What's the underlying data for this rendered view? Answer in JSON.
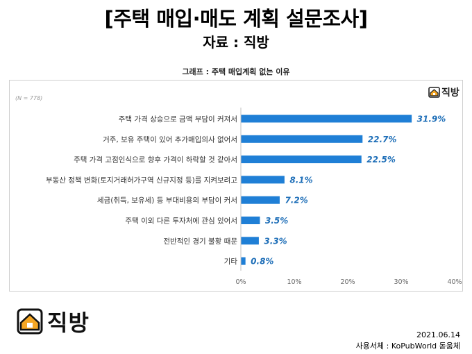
{
  "header": {
    "title": "[주택 매입·매도 계획 설문조사]",
    "subtitle": "자료 : 직방"
  },
  "chart_data": {
    "type": "bar",
    "orientation": "horizontal",
    "title": "그래프 : 주택 매입계획 없는 이유",
    "note": "(N = 778)",
    "categories": [
      "주택 가격 상승으로 금액 부담이 커져서",
      "거주, 보유 주택이 있어 추가매입의사 없어서",
      "주택 가격 고점인식으로 향후 가격이 하락할 것 같아서",
      "부동산 정책 변화(토지거래허가구역 신규지정 등)를 지켜보려고",
      "세금(취득, 보유세) 등 부대비용의 부담이 커서",
      "주택 이외 다른 투자처에 관심 있어서",
      "전반적인 경기 불황 때문",
      "기타"
    ],
    "values": [
      31.9,
      22.7,
      22.5,
      8.1,
      7.2,
      3.5,
      3.3,
      0.8
    ],
    "data_labels": [
      "31.9%",
      "22.7%",
      "22.5%",
      "8.1%",
      "7.2%",
      "3.5%",
      "3.3%",
      "0.8%"
    ],
    "x_ticks": [
      "0%",
      "10%",
      "20%",
      "30%",
      "40%"
    ],
    "xlim": [
      0,
      40
    ],
    "grid": false,
    "bar_color": "#1f7fd6",
    "label_color": "#1f6fb8"
  },
  "brand": {
    "chart_logo_text": "직방",
    "footer_logo_text": "직방",
    "logo_icon": "house-icon",
    "logo_color": "#f5a623"
  },
  "footer": {
    "date": "2021.06.14",
    "font_note": "사용서체 : KoPubWorld 돋움체"
  }
}
